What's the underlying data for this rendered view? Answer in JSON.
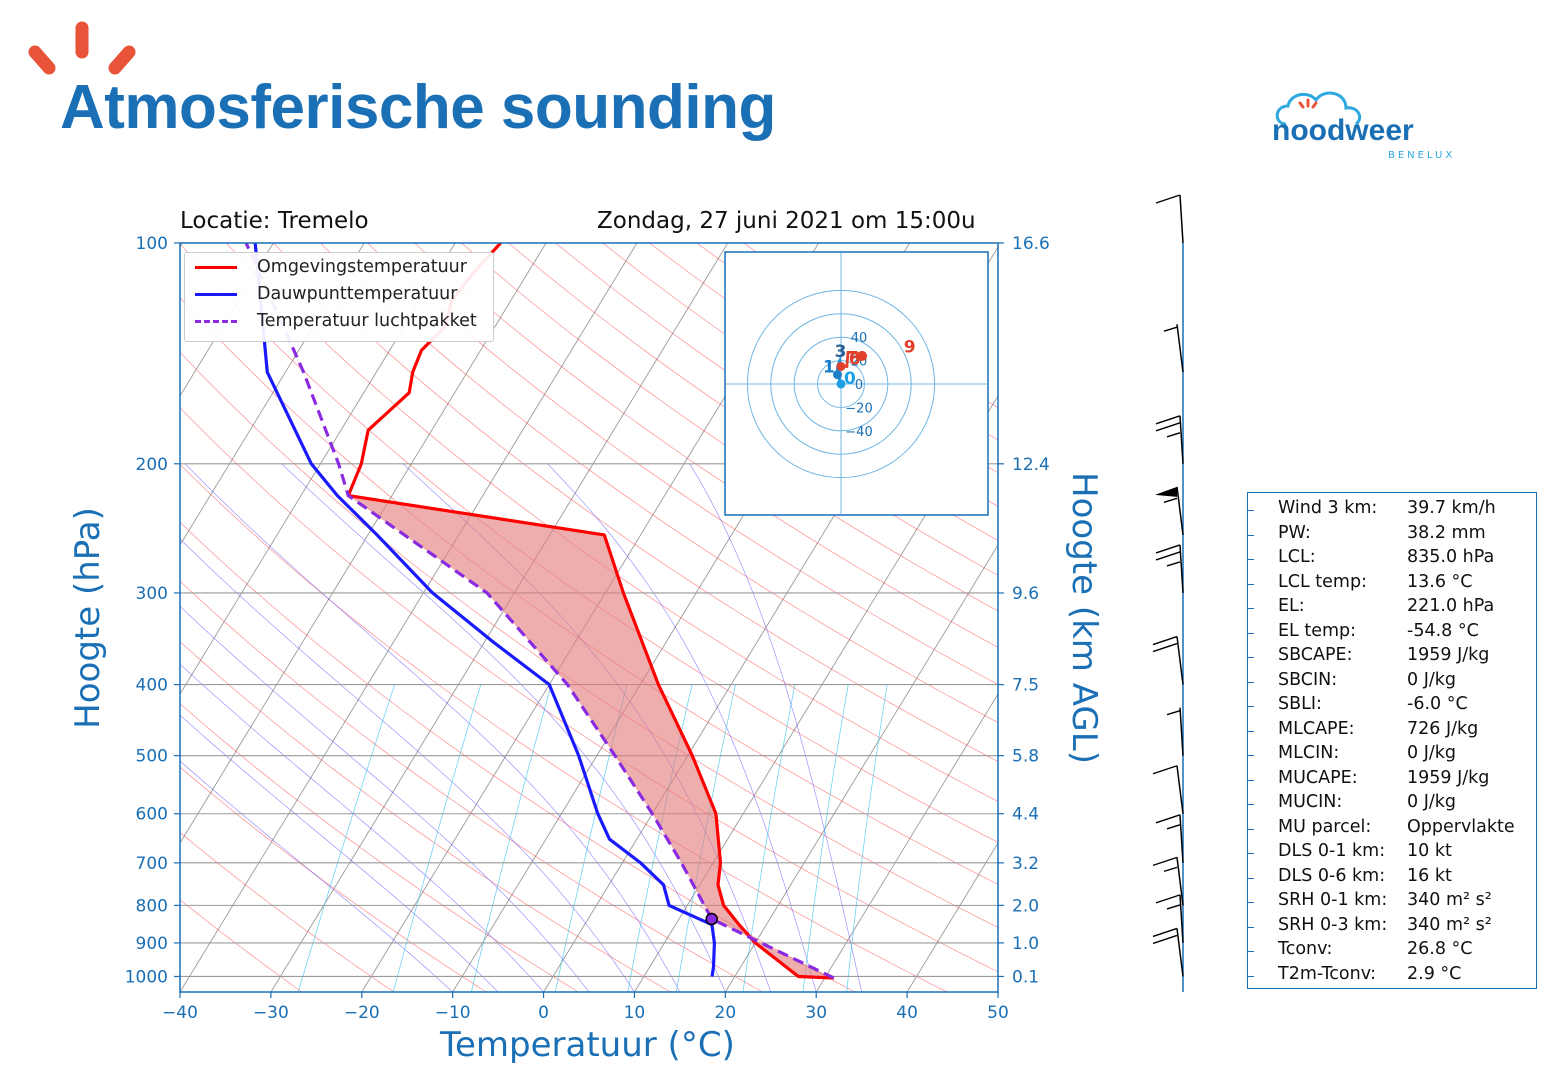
{
  "header": {
    "title": "Atmosferische sounding",
    "brand": {
      "name": "noodweer",
      "sub": "BENELUX"
    }
  },
  "chart_data": {
    "type": "skew-t",
    "location": "Locatie: Tremelo",
    "datetime": "Zondag, 27 juni 2021 om 15:00u",
    "xlabel": "Temperatuur (°C)",
    "ylabel": "Hoogte (hPa)",
    "y2label": "Hoogte (km AGL)",
    "xlim": [
      -40,
      50
    ],
    "ylim_hPa": [
      1050,
      100
    ],
    "x_ticks": [
      "−40",
      "−30",
      "−20",
      "−10",
      "0",
      "10",
      "20",
      "30",
      "40",
      "50"
    ],
    "pressure_levels": [
      100,
      200,
      300,
      400,
      500,
      600,
      700,
      800,
      900,
      1000
    ],
    "height_labels_km": [
      "16.6",
      "12.4",
      "9.6",
      "7.5",
      "5.8",
      "4.4",
      "3.2",
      "2.0",
      "1.0",
      "0.1"
    ],
    "legend": [
      "Omgevingstemperatuur",
      "Dauwpunttemperatuur",
      "Temperatuur luchtpakket"
    ],
    "series": [
      {
        "name": "Omgevingstemperatuur",
        "color": "#ff0000",
        "points": [
          [
            1005,
            31
          ],
          [
            1000,
            27
          ],
          [
            900,
            20
          ],
          [
            850,
            17
          ],
          [
            800,
            14
          ],
          [
            750,
            12
          ],
          [
            700,
            10.8
          ],
          [
            600,
            7
          ],
          [
            500,
            0.5
          ],
          [
            400,
            -8
          ],
          [
            300,
            -18
          ],
          [
            250,
            -24
          ],
          [
            221,
            -54.8
          ],
          [
            200,
            -55.5
          ],
          [
            180,
            -57
          ],
          [
            160,
            -55
          ],
          [
            150,
            -56
          ],
          [
            140,
            -56.5
          ],
          [
            130,
            -55.5
          ],
          [
            120,
            -56.5
          ],
          [
            110,
            -56
          ],
          [
            100,
            -55
          ]
        ]
      },
      {
        "name": "Dauwpunttemperatuur",
        "color": "#1a1aff",
        "points": [
          [
            1000,
            17.5
          ],
          [
            970,
            17
          ],
          [
            900,
            15.5
          ],
          [
            850,
            14
          ],
          [
            800,
            8
          ],
          [
            750,
            6
          ],
          [
            700,
            2
          ],
          [
            650,
            -3
          ],
          [
            600,
            -6
          ],
          [
            500,
            -12
          ],
          [
            400,
            -20
          ],
          [
            350,
            -29
          ],
          [
            300,
            -39
          ],
          [
            250,
            -49
          ],
          [
            221,
            -56
          ],
          [
            200,
            -61
          ],
          [
            150,
            -72
          ],
          [
            100,
            -82
          ]
        ]
      },
      {
        "name": "Temperatuur luchtpakket",
        "color": "#8a2be2",
        "points": [
          [
            1005,
            31
          ],
          [
            835,
            13.6
          ],
          [
            700,
            6.5
          ],
          [
            600,
            0
          ],
          [
            500,
            -8
          ],
          [
            400,
            -18
          ],
          [
            300,
            -33
          ],
          [
            221,
            -54.8
          ],
          [
            200,
            -58
          ],
          [
            150,
            -68
          ],
          [
            100,
            -83
          ]
        ]
      }
    ],
    "hodograph": {
      "ticks": [
        "40",
        "20",
        "0",
        "−20",
        "−40"
      ],
      "labels": [
        "0",
        "1",
        "3",
        "6",
        "9"
      ],
      "points": [
        [
          0,
          0
        ],
        [
          -3,
          8
        ],
        [
          -3,
          15
        ],
        [
          -1,
          20
        ],
        [
          0,
          15
        ],
        [
          3,
          15
        ],
        [
          5,
          15
        ],
        [
          6,
          27
        ],
        [
          10,
          27
        ],
        [
          13,
          27
        ],
        [
          14,
          24
        ],
        [
          18,
          24
        ]
      ]
    },
    "wind_barbs_kt": [
      {
        "p": 1000,
        "speed": 20
      },
      {
        "p": 900,
        "speed": 15
      },
      {
        "p": 800,
        "speed": 15
      },
      {
        "p": 700,
        "speed": 15
      },
      {
        "p": 600,
        "speed": 10
      },
      {
        "p": 500,
        "speed": 5
      },
      {
        "p": 400,
        "speed": 20
      },
      {
        "p": 300,
        "speed": 25
      },
      {
        "p": 250,
        "speed": 55
      },
      {
        "p": 200,
        "speed": 25
      },
      {
        "p": 150,
        "speed": 5
      },
      {
        "p": 100,
        "speed": 10
      }
    ]
  },
  "stats": [
    {
      "label": "Wind 3 km:",
      "value": "39.7 km/h"
    },
    {
      "label": "PW:",
      "value": "38.2 mm"
    },
    {
      "label": "LCL:",
      "value": "835.0 hPa"
    },
    {
      "label": "LCL temp:",
      "value": "13.6 °C"
    },
    {
      "label": "EL:",
      "value": "221.0 hPa"
    },
    {
      "label": "EL temp:",
      "value": "-54.8 °C"
    },
    {
      "label": "SBCAPE:",
      "value": "1959 J/kg"
    },
    {
      "label": "SBCIN:",
      "value": "0 J/kg"
    },
    {
      "label": "SBLI:",
      "value": "-6.0 °C"
    },
    {
      "label": "MLCAPE:",
      "value": "726 J/kg"
    },
    {
      "label": "MLCIN:",
      "value": "0 J/kg"
    },
    {
      "label": "MUCAPE:",
      "value": "1959 J/kg"
    },
    {
      "label": "MUCIN:",
      "value": "0 J/kg"
    },
    {
      "label": "MU parcel:",
      "value": "Oppervlakte"
    },
    {
      "label": "DLS 0-1 km:",
      "value": "10 kt"
    },
    {
      "label": "DLS 0-6 km:",
      "value": "16 kt"
    },
    {
      "label": "SRH 0-1 km:",
      "value": "340 m² s²"
    },
    {
      "label": "SRH 0-3 km:",
      "value": "340 m² s²"
    },
    {
      "label": "Tconv:",
      "value": "26.8 °C"
    },
    {
      "label": "T2m-Tconv:",
      "value": "2.9 °C"
    }
  ]
}
